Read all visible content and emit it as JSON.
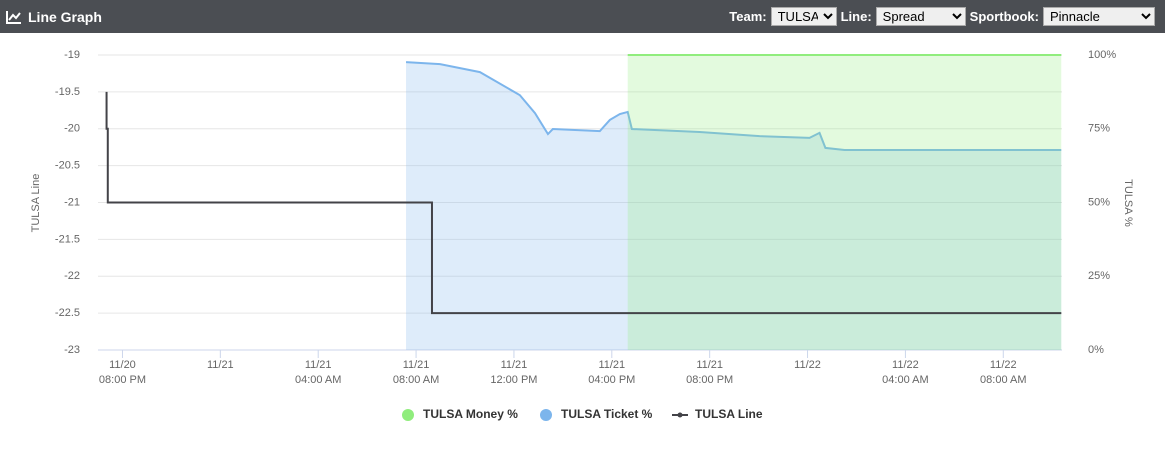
{
  "header": {
    "title": "Line Graph",
    "controls": [
      {
        "label": "Team:",
        "value": "TULSA"
      },
      {
        "label": "Line:",
        "value": "Spread"
      },
      {
        "label": "Sportbook:",
        "value": "Pinnacle"
      }
    ]
  },
  "chart_data": {
    "type": "line",
    "y_label": "TULSA Line",
    "y2_label": "TULSA %",
    "xlim": [
      19.0,
      58.4
    ],
    "xticks": [
      {
        "value": 20,
        "label": "11/20",
        "time": "08:00 PM"
      },
      {
        "value": 24,
        "label": "11/21"
      },
      {
        "value": 28,
        "label": "11/21",
        "time": "04:00 AM"
      },
      {
        "value": 32,
        "label": "11/21",
        "time": "08:00 AM"
      },
      {
        "value": 36,
        "label": "11/21",
        "time": "12:00 PM"
      },
      {
        "value": 40,
        "label": "11/21",
        "time": "04:00 PM"
      },
      {
        "value": 44,
        "label": "11/21",
        "time": "08:00 PM"
      },
      {
        "value": 48,
        "label": "11/22"
      },
      {
        "value": 52,
        "label": "11/22",
        "time": "04:00 AM"
      },
      {
        "value": 56,
        "label": "11/22",
        "time": "08:00 AM"
      }
    ],
    "ylim": [
      -23,
      -19
    ],
    "yticks": [
      -23,
      -22.5,
      -22,
      -21.5,
      -21,
      -20.5,
      -20,
      -19.5,
      -19
    ],
    "y2lim": [
      0,
      100
    ],
    "y2ticks": [
      {
        "value": 0,
        "label": "0%"
      },
      {
        "value": 25,
        "label": "25%"
      },
      {
        "value": 50,
        "label": "50%"
      },
      {
        "value": 75,
        "label": "75%"
      },
      {
        "value": 100,
        "label": "100%"
      }
    ],
    "grid": true,
    "legend": "bottom",
    "series": [
      {
        "name": "TULSA Money %",
        "type": "area",
        "axis": "y2",
        "color": "#90ed7d",
        "x": [
          40.65,
          58.37
        ],
        "values": [
          100,
          100
        ]
      },
      {
        "name": "TULSA Ticket %",
        "type": "area",
        "axis": "y2",
        "color": "#7cb5ec",
        "x": [
          31.59,
          32.98,
          34.61,
          36.24,
          36.86,
          37.39,
          37.59,
          39.51,
          39.92,
          40.33,
          40.65,
          40.82,
          43.59,
          46.04,
          48.08,
          48.49,
          48.73,
          49.51,
          58.37
        ],
        "values": [
          97.6,
          96.9,
          94.2,
          86.4,
          80.3,
          73.2,
          74.9,
          74.2,
          78,
          80,
          80.7,
          74.9,
          73.9,
          72.5,
          71.9,
          73.6,
          68.5,
          67.8,
          67.8
        ]
      },
      {
        "name": "TULSA Line",
        "type": "line",
        "axis": "y",
        "color": "#434348",
        "x": [
          19.35,
          19.35,
          19.4,
          19.4,
          32.65,
          32.65,
          58.37
        ],
        "values": [
          -19.5,
          -20,
          -20,
          -21,
          -21,
          -22.5,
          -22.5
        ]
      }
    ]
  }
}
